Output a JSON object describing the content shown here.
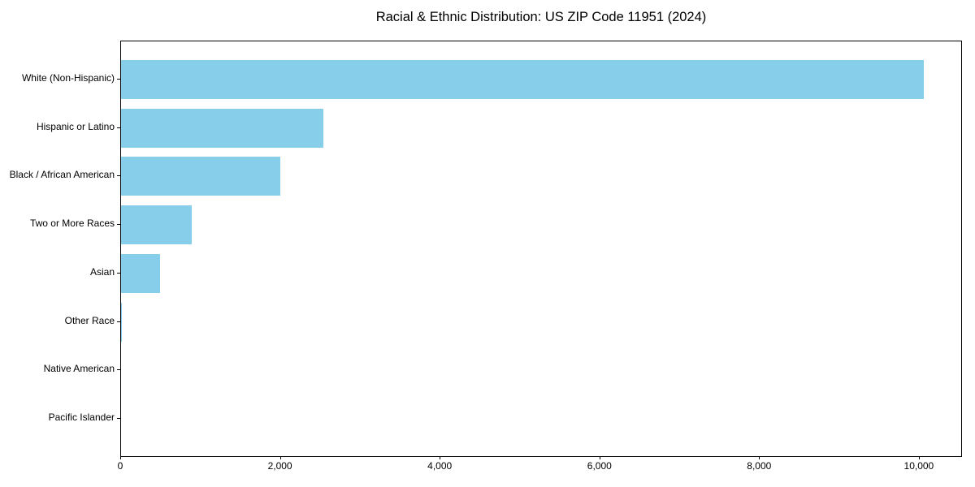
{
  "chart_data": {
    "type": "bar",
    "orientation": "horizontal",
    "title": "Racial & Ethnic Distribution: US ZIP Code 11951 (2024)",
    "categories": [
      "White (Non-Hispanic)",
      "Hispanic or Latino",
      "Black / African American",
      "Two or More Races",
      "Asian",
      "Other Race",
      "Native American",
      "Pacific Islander"
    ],
    "values": [
      10050,
      2530,
      1995,
      885,
      485,
      12,
      0,
      0
    ],
    "title_color": "#000000",
    "bar_color": "#87CEEB",
    "axis_color": "#000000",
    "background_color": "#ffffff",
    "xlabel": "",
    "ylabel": "",
    "xlim": [
      0,
      10540
    ],
    "xticks": [
      0,
      2000,
      4000,
      6000,
      8000,
      10000
    ],
    "xtick_labels": [
      "0",
      "2,000",
      "4,000",
      "6,000",
      "8,000",
      "10,000"
    ],
    "grid": false,
    "legend": null
  }
}
